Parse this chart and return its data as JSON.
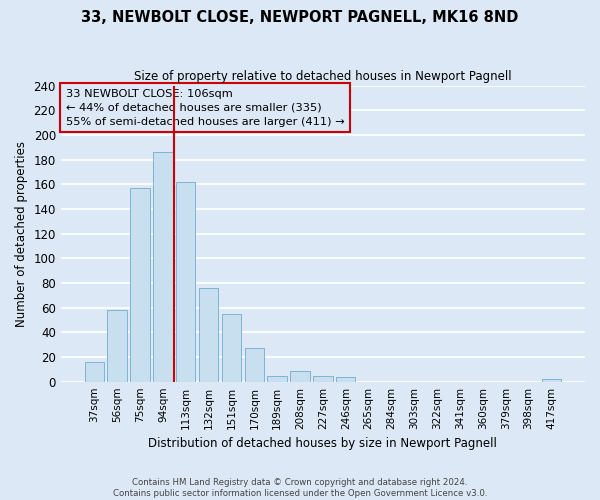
{
  "title": "33, NEWBOLT CLOSE, NEWPORT PAGNELL, MK16 8ND",
  "subtitle": "Size of property relative to detached houses in Newport Pagnell",
  "xlabel": "Distribution of detached houses by size in Newport Pagnell",
  "ylabel": "Number of detached properties",
  "bar_color": "#c8dff0",
  "bar_edge_color": "#7fb3d3",
  "background_color": "#dce8f5",
  "grid_color": "white",
  "categories": [
    "37sqm",
    "56sqm",
    "75sqm",
    "94sqm",
    "113sqm",
    "132sqm",
    "151sqm",
    "170sqm",
    "189sqm",
    "208sqm",
    "227sqm",
    "246sqm",
    "265sqm",
    "284sqm",
    "303sqm",
    "322sqm",
    "341sqm",
    "360sqm",
    "379sqm",
    "398sqm",
    "417sqm"
  ],
  "values": [
    16,
    58,
    157,
    186,
    162,
    76,
    55,
    27,
    5,
    9,
    5,
    4,
    0,
    0,
    0,
    0,
    0,
    0,
    0,
    0,
    2
  ],
  "vline_x": 3.5,
  "vline_color": "#cc0000",
  "annotation_line1": "33 NEWBOLT CLOSE: 106sqm",
  "annotation_line2": "← 44% of detached houses are smaller (335)",
  "annotation_line3": "55% of semi-detached houses are larger (411) →",
  "box_edge_color": "#cc0000",
  "ylim": [
    0,
    240
  ],
  "yticks": [
    0,
    20,
    40,
    60,
    80,
    100,
    120,
    140,
    160,
    180,
    200,
    220,
    240
  ],
  "footnote1": "Contains HM Land Registry data © Crown copyright and database right 2024.",
  "footnote2": "Contains public sector information licensed under the Open Government Licence v3.0."
}
